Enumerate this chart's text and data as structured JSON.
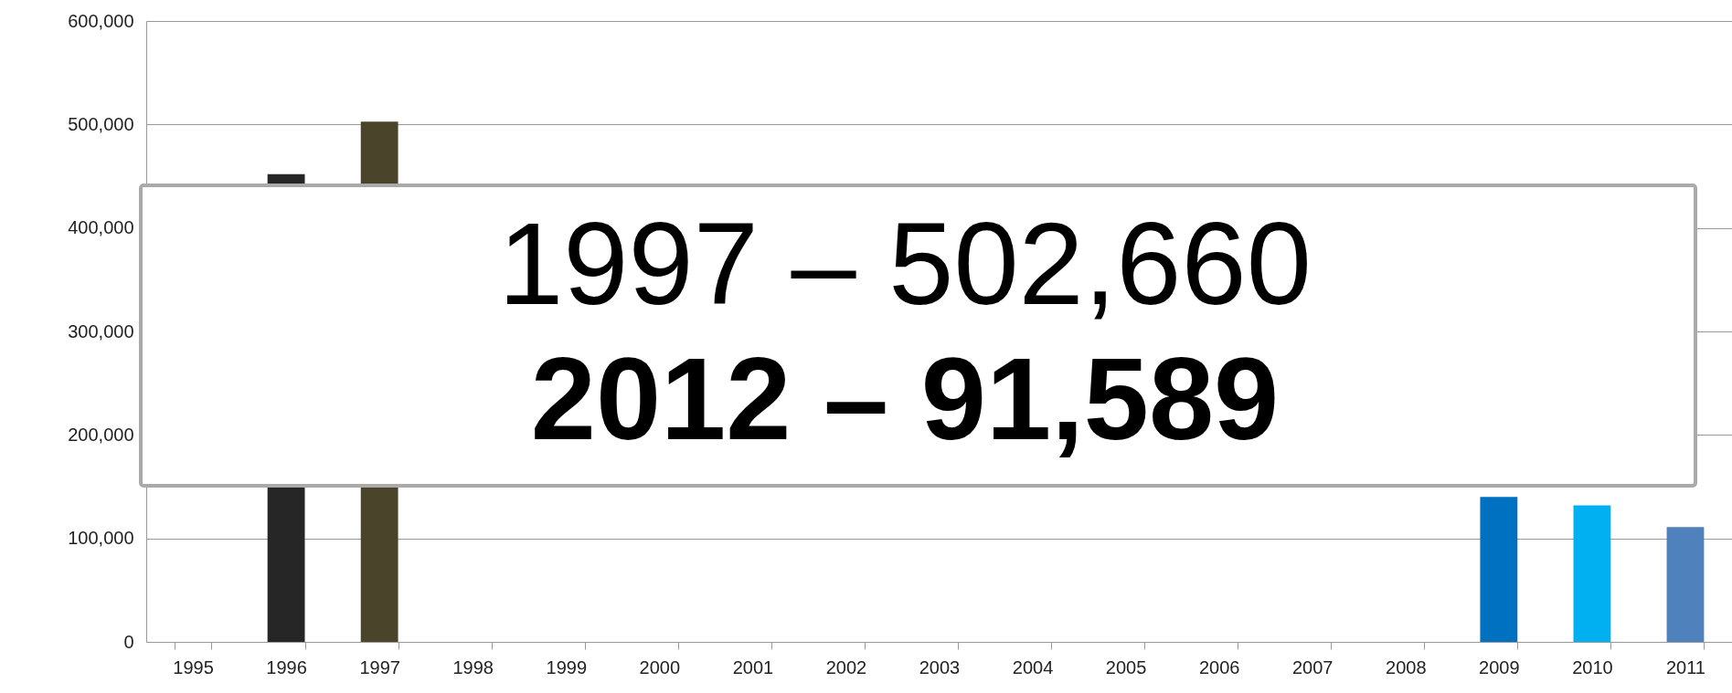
{
  "chart_data": {
    "type": "bar",
    "categories": [
      "1995",
      "1996",
      "1997",
      "1998",
      "1999",
      "2000",
      "2001",
      "2002",
      "2003",
      "2004",
      "2005",
      "2006",
      "2007",
      "2008",
      "2009",
      "2010",
      "2011"
    ],
    "values": [
      null,
      452000,
      502660,
      null,
      null,
      null,
      null,
      null,
      null,
      null,
      null,
      null,
      null,
      null,
      140000,
      132000,
      111000
    ],
    "colors": [
      "#a5a5a5",
      "#262626",
      "#4a452a",
      "#17375e",
      "#376092",
      "#d99694",
      "#77933c",
      "#604a7b",
      "#31859c",
      "#e46c0a",
      "#bfbfbf",
      "#948a54",
      "#4f81bd",
      "#ff0000",
      "#0070c0",
      "#00b0f0",
      "#4f81bd"
    ],
    "ylim": [
      0,
      600000
    ],
    "yticks": [
      0,
      {
        "value": 100000,
        "label": "100,000"
      },
      {
        "value": 200000,
        "label": "200,000"
      },
      {
        "value": 300000,
        "label": "300,000"
      },
      {
        "value": 400000,
        "label": "400,000"
      },
      {
        "value": 500000,
        "label": "500,000"
      },
      {
        "value": 600000,
        "label": "600,000"
      }
    ],
    "grid": "y",
    "annotations": [
      "1997 – 502,660",
      "2012 – 91,589"
    ]
  }
}
